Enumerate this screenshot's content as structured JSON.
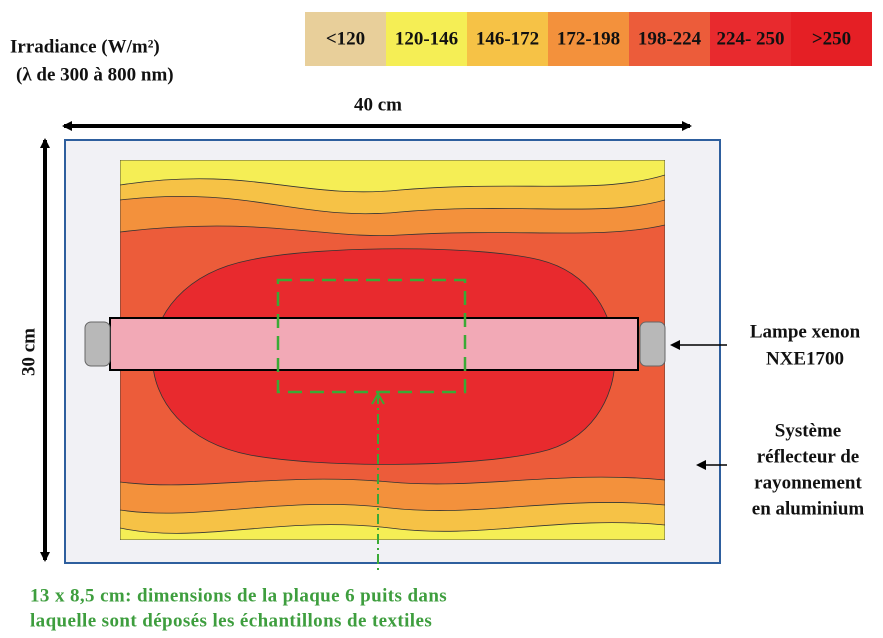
{
  "header": {
    "title": "Irradiance (W/m²)",
    "subtitle": "(λ de 300 à 800 nm)"
  },
  "legend": [
    {
      "label": "<120",
      "color": "#e8cf9a"
    },
    {
      "label": "120-146",
      "color": "#f5ee55"
    },
    {
      "label": "146-172",
      "color": "#f6c246"
    },
    {
      "label": "172-198",
      "color": "#f3913c"
    },
    {
      "label": "198-224",
      "color": "#ec5c3a"
    },
    {
      "label": "224- 250",
      "color": "#e82a2e"
    },
    {
      "label": ">250",
      "color": "#e51f25"
    }
  ],
  "dimensions": {
    "width": "40 cm",
    "height": "30 cm"
  },
  "lamp": {
    "lines": [
      "Lampe xenon",
      "NXE1700"
    ]
  },
  "reflector": {
    "lines": [
      "Système",
      "réflecteur de",
      "rayonnement",
      "en aluminium"
    ]
  },
  "caption": {
    "lines": [
      "13 x 8,5 cm: dimensions de la plaque 6 puits dans",
      "laquelle sont déposés les échantillons de textiles"
    ]
  }
}
